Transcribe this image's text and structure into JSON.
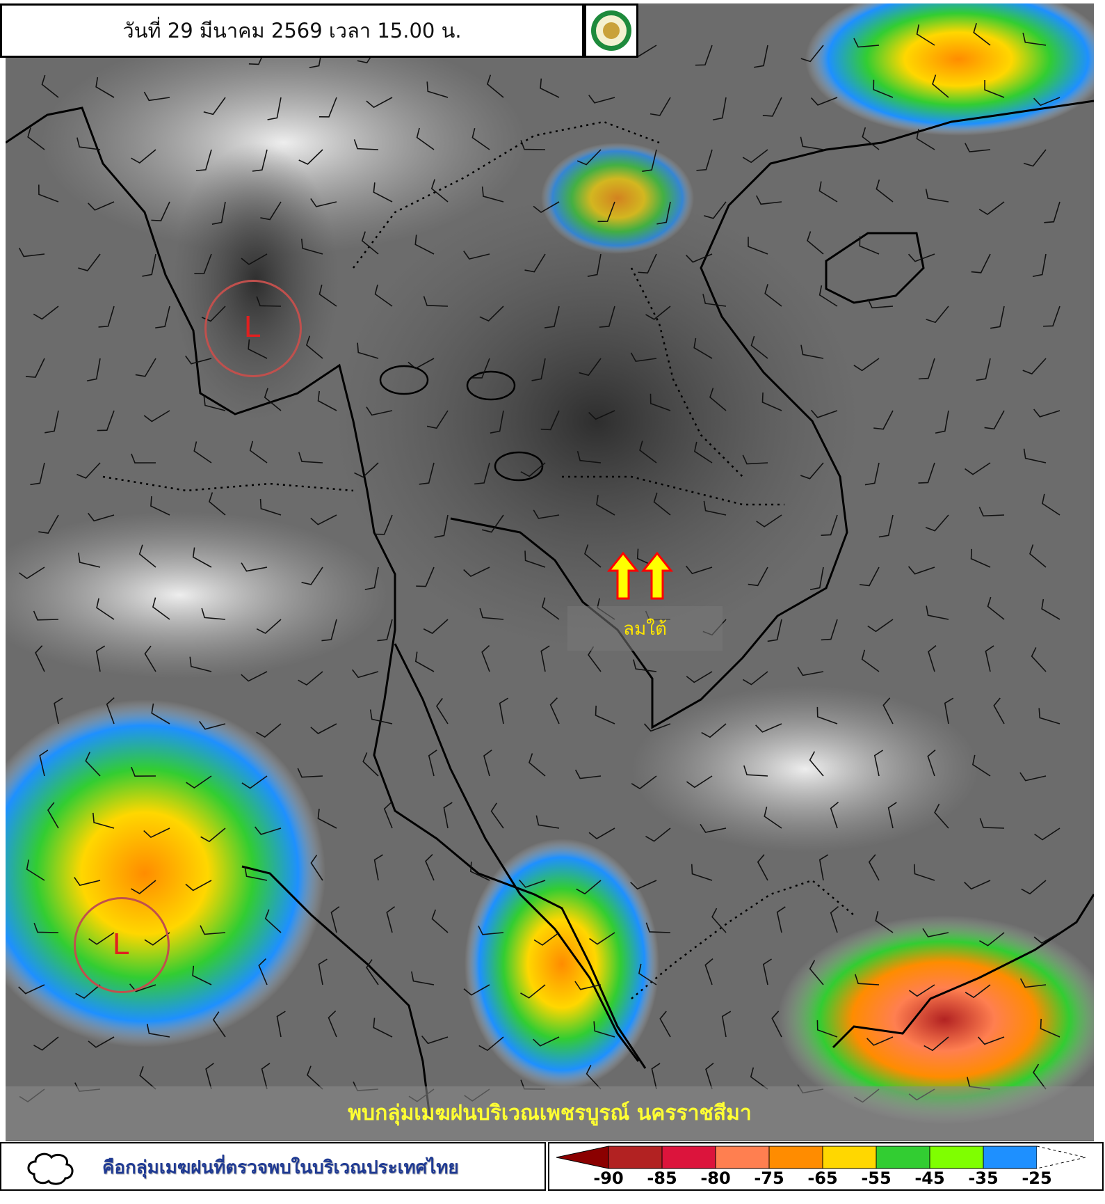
{
  "header": {
    "title": "วันที่ 29 มีนาคม 2569 เวลา 15.00 น."
  },
  "logo": {
    "icon": "tmd-logo-seal"
  },
  "map": {
    "lows": [
      {
        "label": "L"
      },
      {
        "label": "L"
      }
    ],
    "wind_annotation": "ลมใต้",
    "wind_arrow_color": "#ffff00",
    "circle_color": "#c0504d"
  },
  "caption": "พบกลุ่มเมฆฝนบริเวณเพชรบูรณ์ นครราชสีมา",
  "legend": {
    "cloud_description": "คือกลุ่มเมฆฝนที่ตรวจพบในบริเวณประเทศไทย",
    "scale_colors": [
      "#8b0000",
      "#b22222",
      "#dc143c",
      "#ff7f50",
      "#ff8c00",
      "#ffd700",
      "#32cd32",
      "#7fff00",
      "#1e90ff",
      "#ffffff"
    ],
    "scale_labels": [
      "-90",
      "-85",
      "-80",
      "-75",
      "-65",
      "-55",
      "-45",
      "-35",
      "-25"
    ]
  }
}
